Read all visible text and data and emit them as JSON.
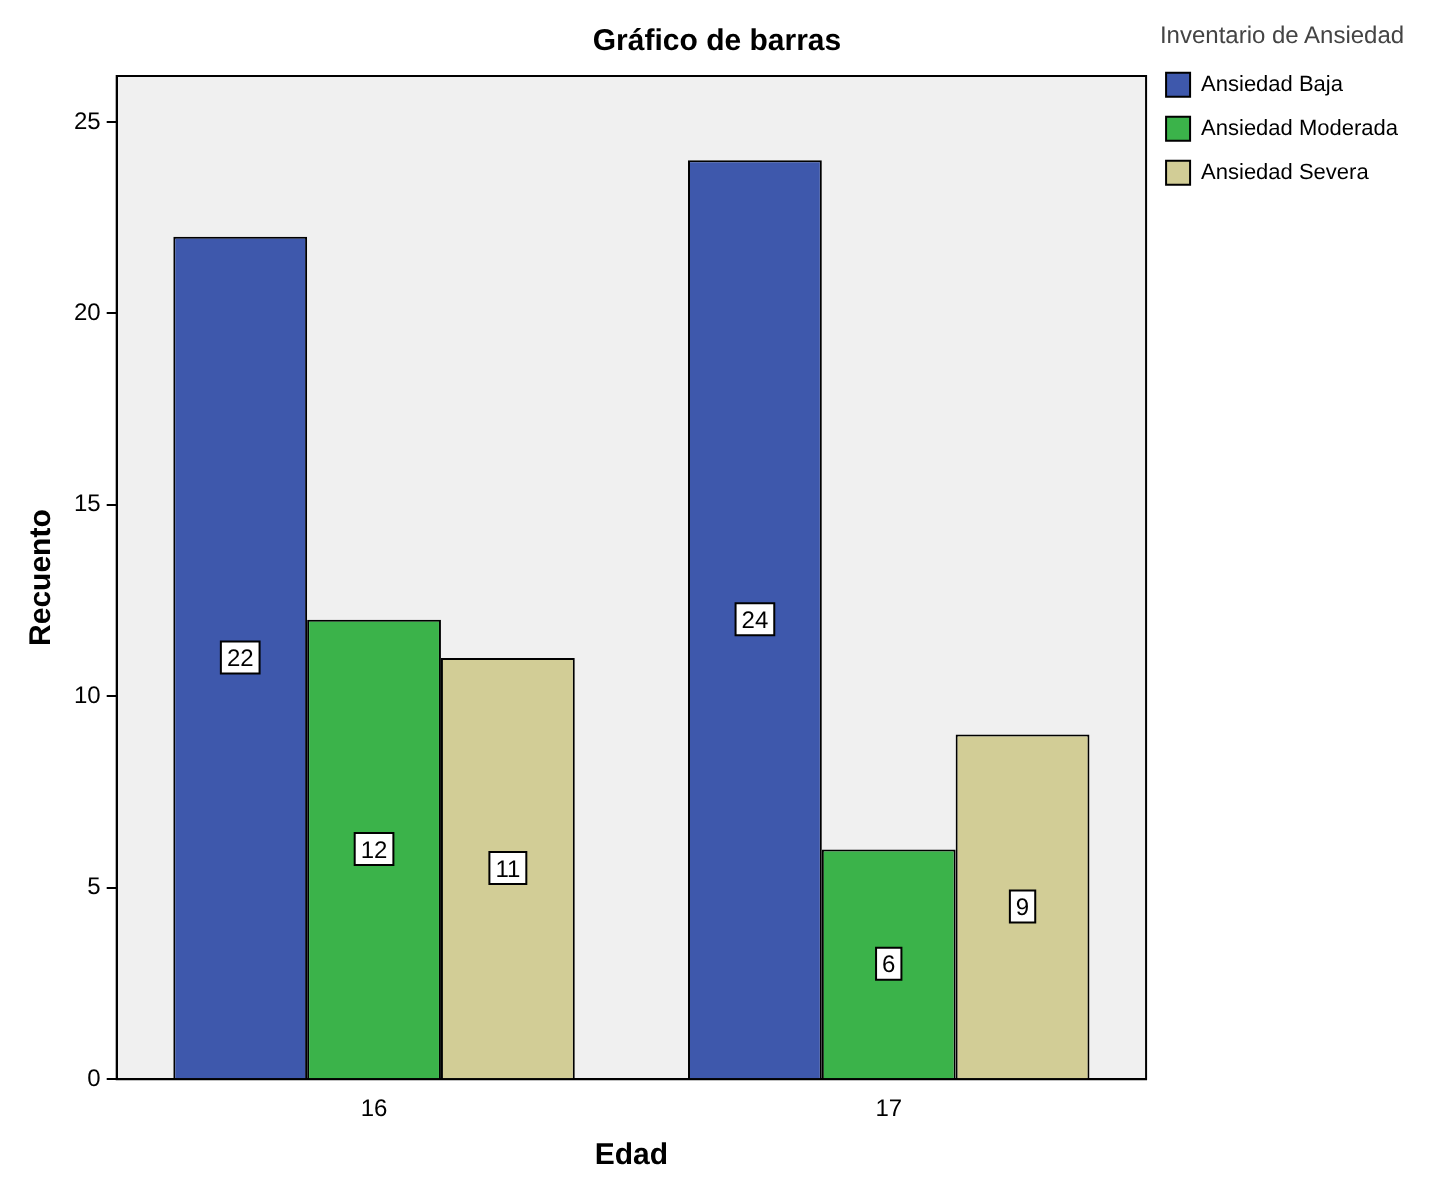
{
  "chart_data": {
    "type": "bar",
    "title": "Gráfico de barras",
    "xlabel": "Edad",
    "ylabel": "Recuento",
    "legend_title": "Inventario de Ansiedad",
    "categories": [
      "16",
      "17"
    ],
    "series": [
      {
        "name": "Ansiedad Baja",
        "color": "#3e58ac",
        "values": [
          22,
          24
        ]
      },
      {
        "name": "Ansiedad Moderada",
        "color": "#3bb34a",
        "values": [
          12,
          6
        ]
      },
      {
        "name": "Ansiedad Severa",
        "color": "#d2cd96",
        "values": [
          11,
          9
        ]
      }
    ],
    "ylim": [
      0,
      26.2
    ],
    "yticks": [
      0,
      5,
      10,
      15,
      20,
      25
    ],
    "grid": false,
    "legend": "top right",
    "data_labels": true
  }
}
